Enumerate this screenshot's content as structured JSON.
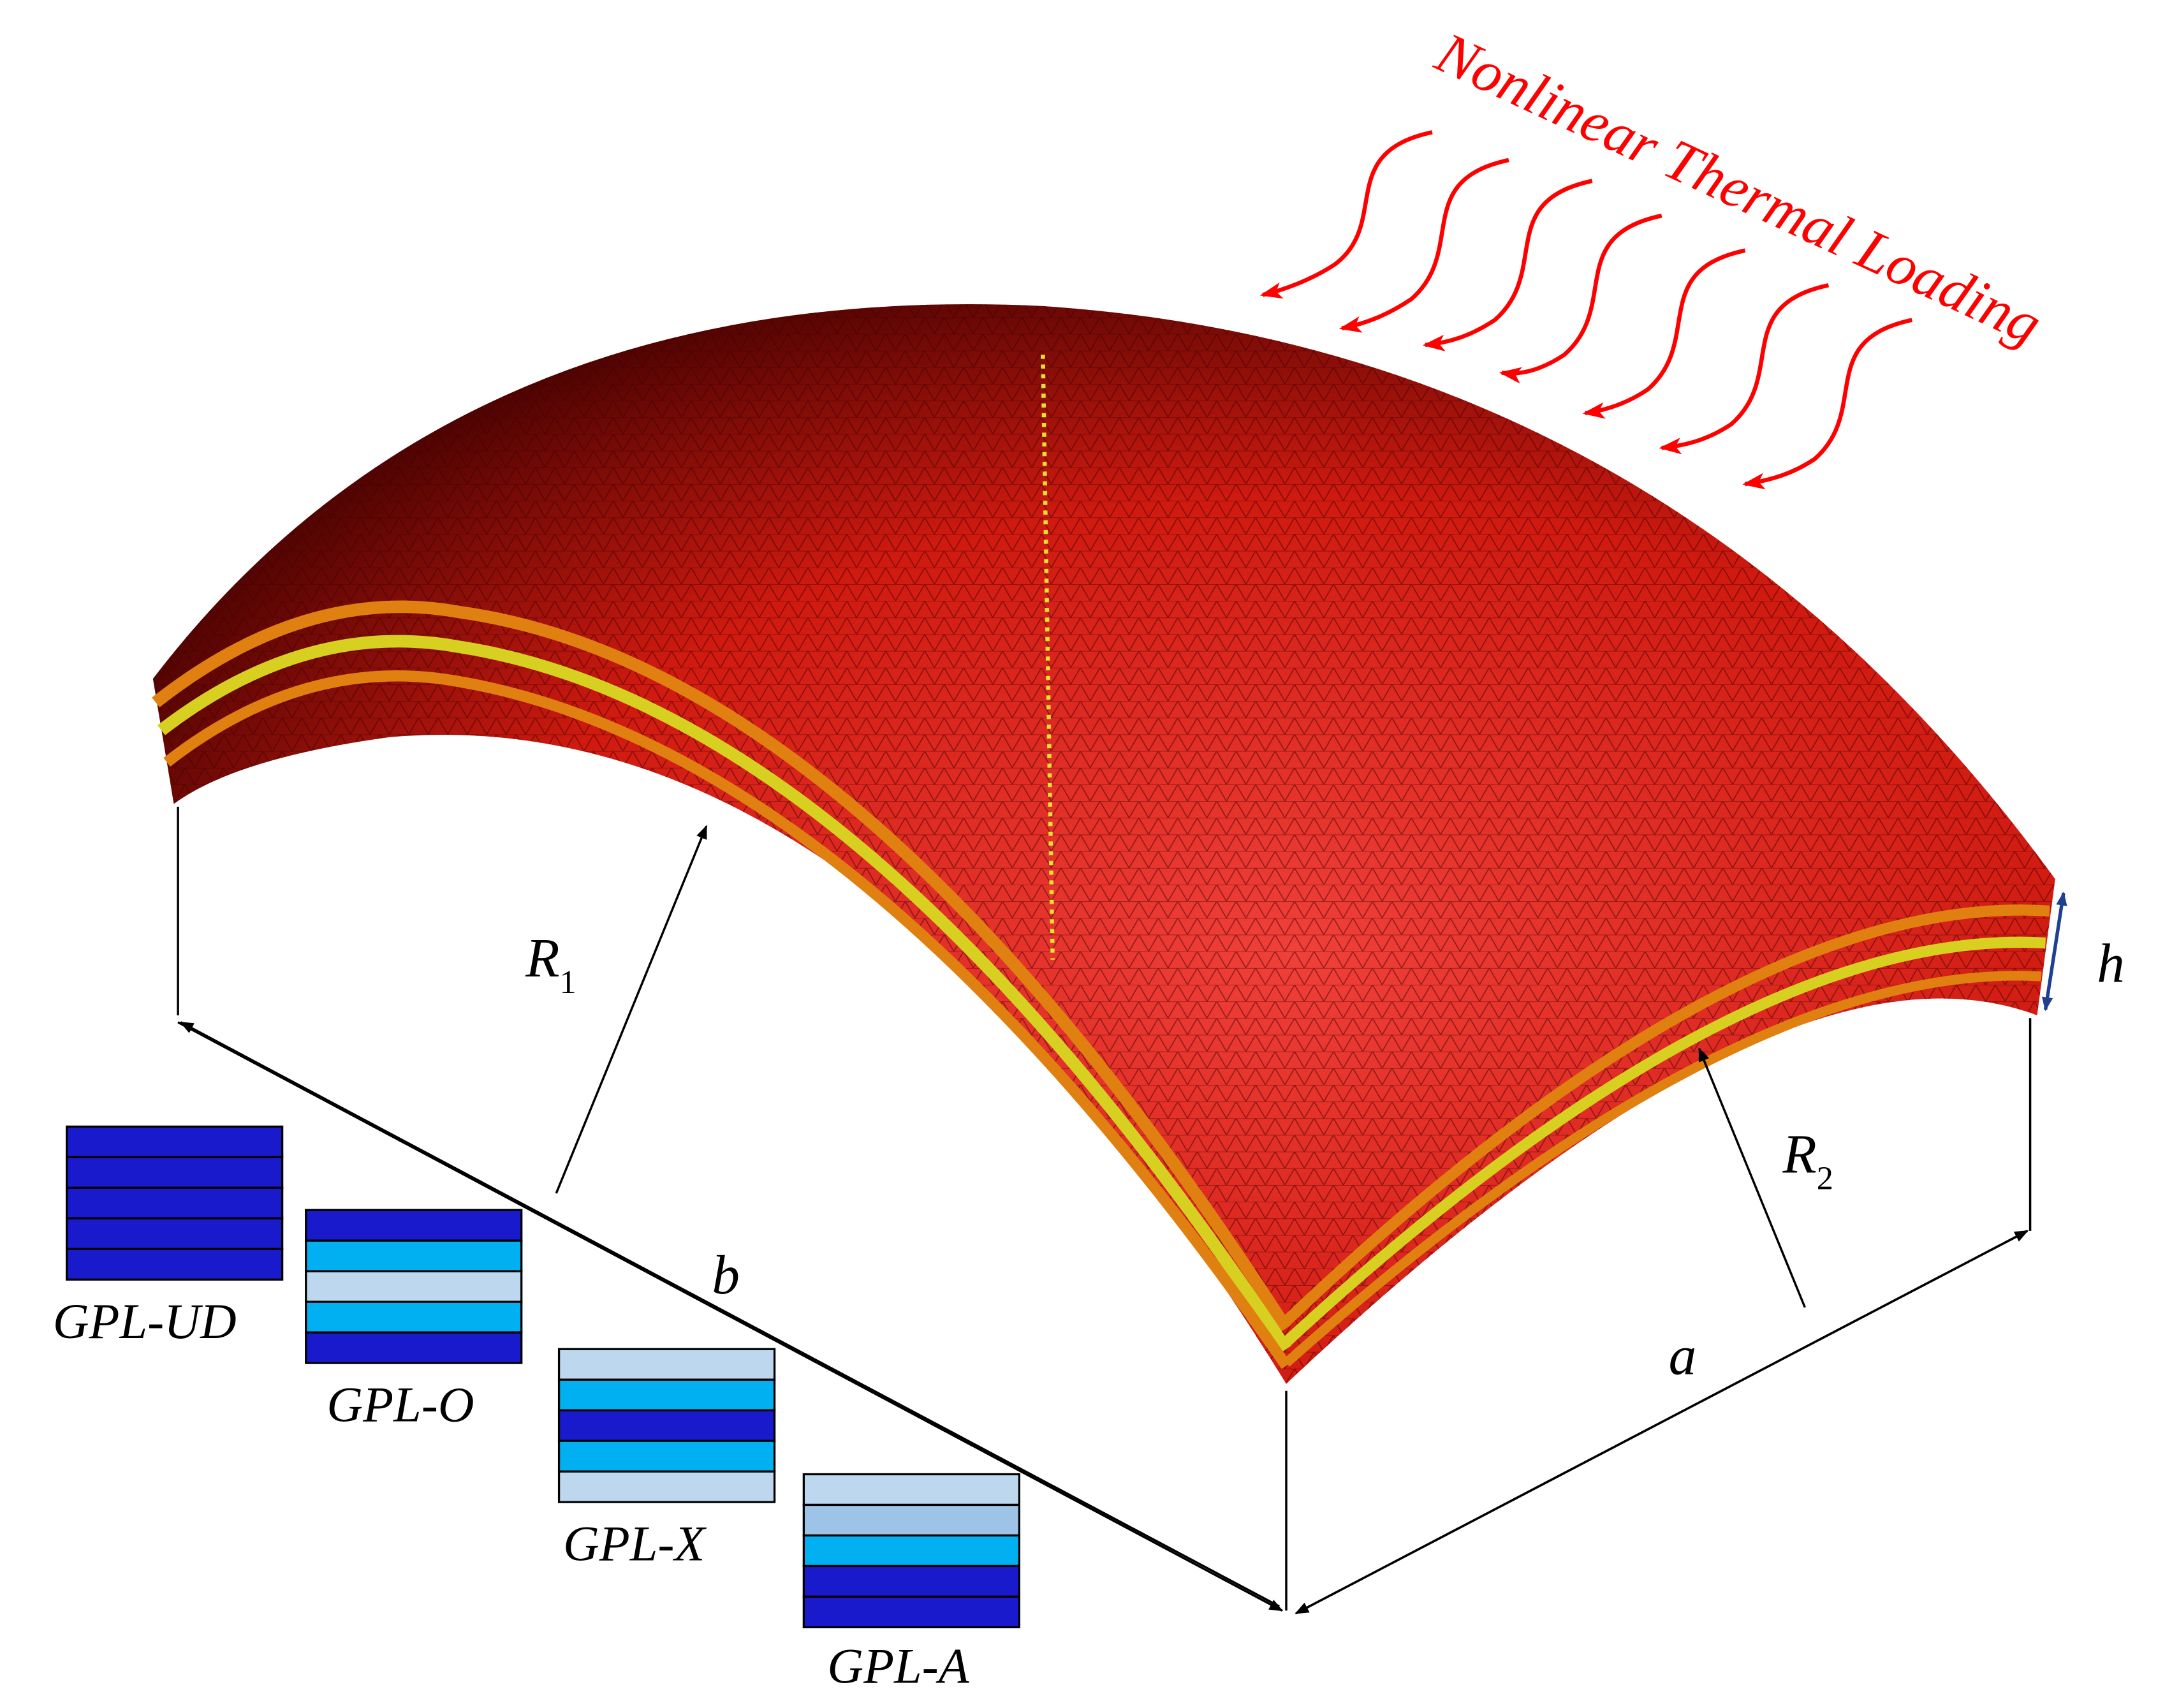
{
  "title": "Nonlinear Thermal Loading",
  "dimensions": {
    "R1": {
      "symbol": "R",
      "subscript": "1"
    },
    "R2": {
      "symbol": "R",
      "subscript": "2"
    },
    "h": "h",
    "a": "a",
    "b": "b"
  },
  "patterns": [
    "GPL-UD",
    "GPL-O",
    "GPL-X",
    "GPL-A"
  ]
}
